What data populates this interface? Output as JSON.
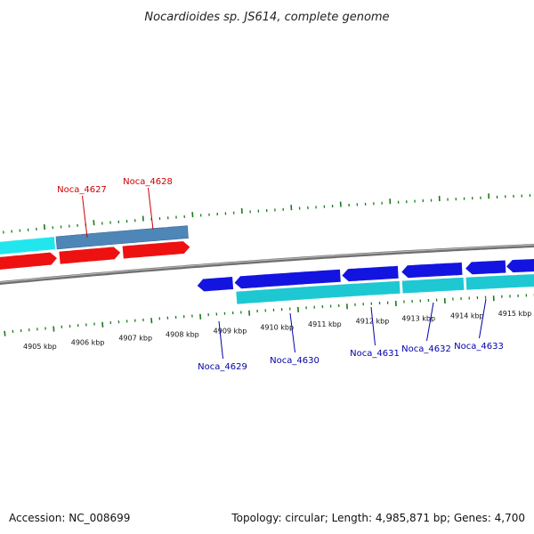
{
  "title": "Nocardioides sp. JS614, complete genome",
  "footer": {
    "accession": "Accession: NC_008699",
    "summary": "Topology: circular; Length: 4,985,871 bp; Genes: 4,700"
  },
  "colors": {
    "backbone": "#8a8a8a",
    "tick": "#1a7a1a",
    "forward_gene": "#ee1111",
    "forward_cds": "#22e6ee",
    "forward_other": "#4f86b8",
    "reverse_gene": "#1414e0",
    "reverse_cds": "#1ec8d2",
    "label_forward": "#cc0000",
    "label_reverse": "#0000aa"
  },
  "kbp_labels": [
    "4905 kbp",
    "4906 kbp",
    "4907 kbp",
    "4908 kbp",
    "4909 kbp",
    "4910 kbp",
    "4911 kbp",
    "4912 kbp",
    "4913 kbp",
    "4914 kbp",
    "4915 kbp"
  ],
  "genes": [
    {
      "name": "Noca_4627",
      "strand": "forward"
    },
    {
      "name": "Noca_4628",
      "strand": "forward"
    },
    {
      "name": "Noca_4629",
      "strand": "reverse"
    },
    {
      "name": "Noca_4630",
      "strand": "reverse"
    },
    {
      "name": "Noca_4631",
      "strand": "reverse"
    },
    {
      "name": "Noca_4632",
      "strand": "reverse"
    },
    {
      "name": "Noca_4633",
      "strand": "reverse"
    }
  ]
}
